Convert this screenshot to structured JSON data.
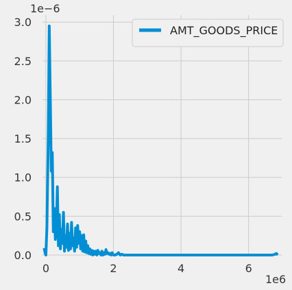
{
  "chart_data": {
    "type": "line",
    "title": "",
    "xlabel": "",
    "ylabel": "",
    "x_offset_label": "1e6",
    "y_offset_label": "1e−6",
    "xlim": [
      -0.1,
      6.98
    ],
    "ylim": [
      0,
      3.09
    ],
    "x_ticks": [
      0,
      2,
      4,
      6
    ],
    "x_tick_labels": [
      "0",
      "2",
      "4",
      "6"
    ],
    "y_ticks": [
      0.0,
      0.5,
      1.0,
      1.5,
      2.0,
      2.5,
      3.0
    ],
    "y_tick_labels": [
      "0.0",
      "0.5",
      "1.0",
      "1.5",
      "2.0",
      "2.5",
      "3.0"
    ],
    "grid": true,
    "legend_position": "top-right",
    "series": [
      {
        "name": "AMT_GOODS_PRICE",
        "color": "#008fd5",
        "x": [
          -0.05,
          -0.02,
          0.0,
          0.03,
          0.07,
          0.1,
          0.13,
          0.16,
          0.19,
          0.22,
          0.25,
          0.28,
          0.31,
          0.34,
          0.37,
          0.4,
          0.43,
          0.46,
          0.49,
          0.52,
          0.55,
          0.58,
          0.61,
          0.64,
          0.67,
          0.7,
          0.73,
          0.76,
          0.79,
          0.82,
          0.85,
          0.88,
          0.91,
          0.94,
          0.97,
          1.0,
          1.03,
          1.06,
          1.09,
          1.12,
          1.15,
          1.18,
          1.21,
          1.24,
          1.27,
          1.3,
          1.33,
          1.36,
          1.39,
          1.42,
          1.45,
          1.48,
          1.51,
          1.54,
          1.57,
          1.6,
          1.63,
          1.66,
          1.69,
          1.72,
          1.75,
          1.78,
          1.81,
          1.84,
          1.87,
          1.9,
          1.93,
          1.96,
          2.0,
          2.05,
          2.1,
          2.15,
          2.2,
          2.25,
          2.3,
          2.4,
          2.5,
          2.7,
          3.0,
          3.5,
          4.0,
          4.5,
          5.0,
          5.5,
          6.0,
          6.5,
          6.7,
          6.78,
          6.82,
          6.86
        ],
        "y": [
          0.09,
          0.02,
          0.0,
          0.35,
          1.5,
          2.95,
          2.05,
          1.08,
          1.32,
          0.3,
          0.6,
          0.2,
          0.35,
          0.88,
          0.12,
          0.52,
          0.08,
          0.33,
          0.15,
          0.55,
          0.05,
          0.25,
          0.1,
          0.4,
          0.06,
          0.28,
          0.08,
          0.42,
          0.12,
          0.22,
          0.05,
          0.35,
          0.1,
          0.38,
          0.15,
          0.3,
          0.08,
          0.25,
          0.05,
          0.26,
          0.04,
          0.18,
          0.03,
          0.12,
          0.02,
          0.08,
          0.01,
          0.06,
          0.0,
          0.05,
          0.01,
          0.05,
          0.0,
          0.06,
          0.02,
          0.03,
          0.0,
          0.05,
          0.0,
          0.03,
          0.01,
          0.07,
          0.02,
          0.03,
          0.01,
          0.02,
          0.0,
          0.03,
          0.0,
          0.0,
          0.01,
          0.03,
          0.0,
          0.01,
          0.0,
          0.0,
          0.0,
          0.0,
          0.0,
          0.0,
          0.0,
          0.0,
          0.0,
          0.0,
          0.0,
          0.0,
          0.0,
          0.01,
          0.02,
          0.0
        ]
      }
    ]
  }
}
